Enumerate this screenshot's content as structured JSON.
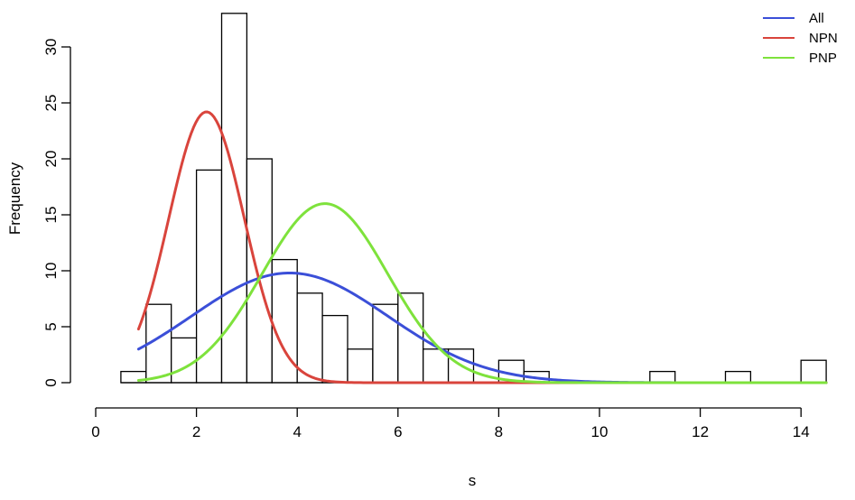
{
  "chart_data": {
    "type": "bar",
    "title": "",
    "xlabel": "s",
    "ylabel": "Frequency",
    "xlim": [
      0,
      14.5
    ],
    "ylim": [
      0,
      33
    ],
    "x_ticks": [
      0,
      2,
      4,
      6,
      8,
      10,
      12,
      14
    ],
    "y_ticks": [
      0,
      5,
      10,
      15,
      20,
      25,
      30
    ],
    "grid": false,
    "legend_placement": "top-right",
    "histogram": {
      "bin_width": 0.5,
      "bins": [
        {
          "start": 0.5,
          "count": 1
        },
        {
          "start": 1.0,
          "count": 7
        },
        {
          "start": 1.5,
          "count": 4
        },
        {
          "start": 2.0,
          "count": 19
        },
        {
          "start": 2.5,
          "count": 33
        },
        {
          "start": 3.0,
          "count": 20
        },
        {
          "start": 3.5,
          "count": 11
        },
        {
          "start": 4.0,
          "count": 8
        },
        {
          "start": 4.5,
          "count": 6
        },
        {
          "start": 5.0,
          "count": 3
        },
        {
          "start": 5.5,
          "count": 7
        },
        {
          "start": 6.0,
          "count": 8
        },
        {
          "start": 6.5,
          "count": 3
        },
        {
          "start": 7.0,
          "count": 3
        },
        {
          "start": 7.5,
          "count": 0
        },
        {
          "start": 8.0,
          "count": 2
        },
        {
          "start": 8.5,
          "count": 1
        },
        {
          "start": 11.0,
          "count": 1
        },
        {
          "start": 12.5,
          "count": 1
        },
        {
          "start": 14.0,
          "count": 2
        }
      ]
    },
    "series": [
      {
        "name": "All",
        "color": "#3b4fd8",
        "type": "normal",
        "x_range": [
          0.85,
          14.5
        ],
        "mean": 3.85,
        "sd": 1.95,
        "peak": 9.8
      },
      {
        "name": "NPN",
        "color": "#d9443c",
        "type": "normal",
        "x_range": [
          0.85,
          14.5
        ],
        "mean": 2.2,
        "sd": 0.75,
        "peak": 24.2
      },
      {
        "name": "PNP",
        "color": "#7ee23c",
        "type": "normal",
        "x_range": [
          0.85,
          14.5
        ],
        "mean": 4.55,
        "sd": 1.25,
        "peak": 16.0
      }
    ]
  }
}
